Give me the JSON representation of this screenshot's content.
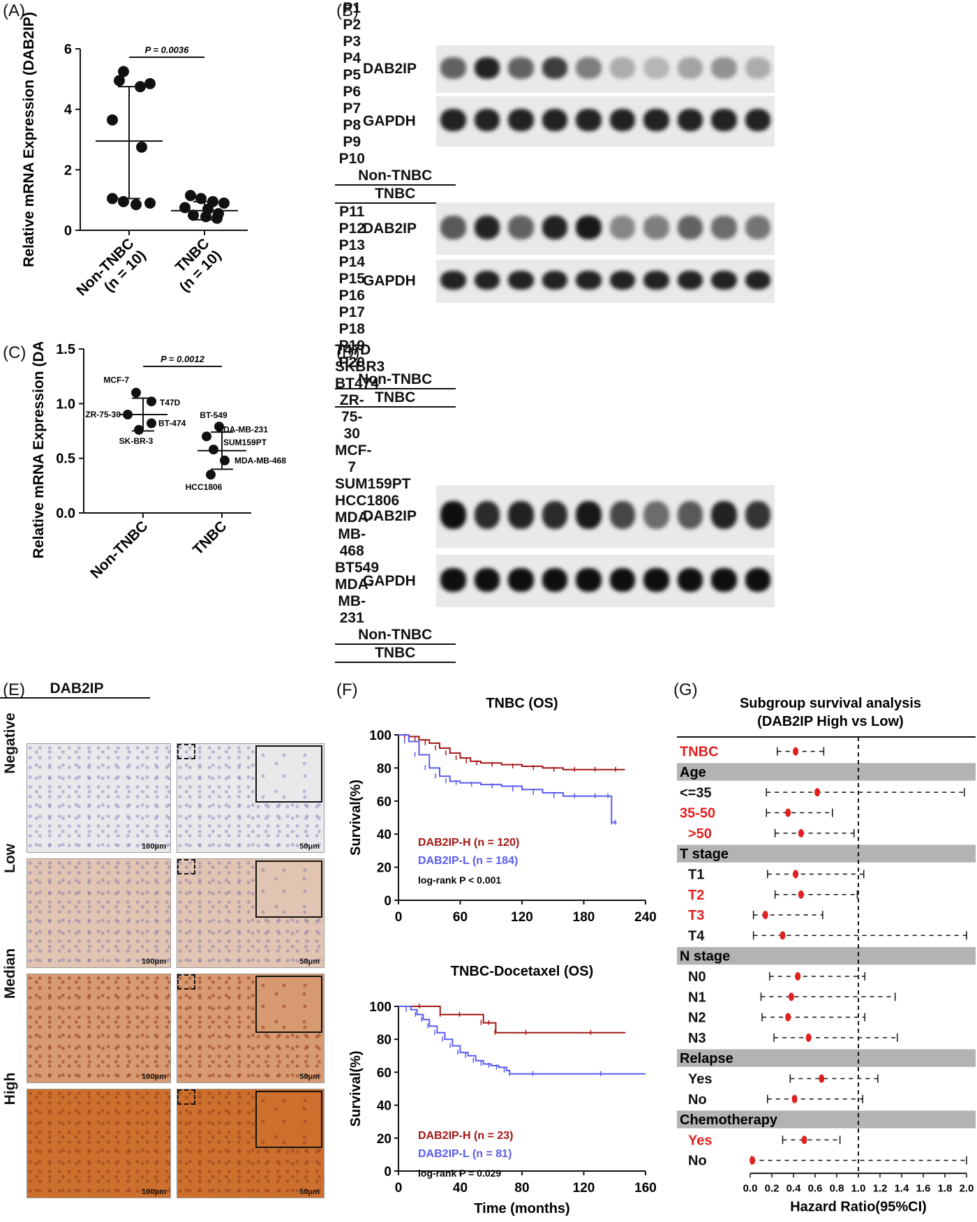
{
  "panel_labels": [
    "(A)",
    "(B)",
    "(C)",
    "(D)",
    "(E)",
    "(F)",
    "(G)"
  ],
  "colors": {
    "high": "#a31515",
    "low": "#5a5af0",
    "point_red": "#e02020",
    "sep": "#b3b3b3"
  },
  "chart_data": [
    {
      "id": "A",
      "type": "scatter",
      "ylabel": "Relative mRNA Expression (DAB2IP)",
      "categories": [
        "Non-TNBC\n(n = 10)",
        "TNBC\n(n = 10)"
      ],
      "yticks": [
        0,
        2,
        4,
        6
      ],
      "ylim": [
        0,
        6
      ],
      "pvalue": "P = 0.0036",
      "series": [
        {
          "points": [
            5.25,
            4.85,
            4.75,
            4.95,
            3.65,
            2.75,
            1.05,
            0.95,
            0.85,
            0.9
          ],
          "mean": 2.95,
          "sd_low": 1.05,
          "sd_high": 4.75
        },
        {
          "points": [
            1.15,
            1.05,
            0.95,
            0.9,
            0.75,
            0.7,
            0.55,
            0.5,
            0.45,
            0.4
          ],
          "mean": 0.65,
          "sd_low": 0.35,
          "sd_high": 0.95
        }
      ]
    },
    {
      "id": "C",
      "type": "scatter",
      "ylabel": "Relative mRNA Expression (DAB2IP)",
      "categories": [
        "Non-TNBC",
        "TNBC"
      ],
      "yticks": [
        "0.0",
        "0.5",
        "1.0",
        "1.5"
      ],
      "ylim": [
        0,
        1.5
      ],
      "pvalue": "P = 0.0012",
      "series": [
        {
          "points": [
            1.1,
            1.02,
            0.9,
            0.82,
            0.76
          ],
          "mean": 0.9,
          "sd_low": 0.75,
          "sd_high": 1.05,
          "labels": [
            "MCF-7",
            "T47D",
            "ZR-75-30",
            "BT-474",
            "SK-BR-3"
          ]
        },
        {
          "points": [
            0.79,
            0.7,
            0.58,
            0.48,
            0.35
          ],
          "mean": 0.57,
          "sd_low": 0.4,
          "sd_high": 0.74,
          "labels": [
            "BT-549",
            "MDA-MB-231",
            "SUM159PT",
            "MDA-MB-468",
            "HCC1806"
          ]
        }
      ]
    },
    {
      "id": "F1",
      "type": "line",
      "title": "TNBC (OS)",
      "ylabel": "Survival(%)",
      "xticks": [
        0,
        60,
        120,
        180,
        240
      ],
      "yticks": [
        0,
        20,
        40,
        60,
        80,
        100
      ],
      "xlim": [
        0,
        240
      ],
      "ylim": [
        0,
        100
      ],
      "series": [
        {
          "name": "DAB2IP-H (n = 120)",
          "x": [
            0,
            10,
            20,
            30,
            40,
            50,
            60,
            70,
            80,
            100,
            120,
            140,
            160,
            180,
            200,
            220
          ],
          "y": [
            100,
            99,
            97,
            95,
            92,
            89,
            86,
            84,
            83,
            82,
            81,
            80,
            79,
            79,
            79,
            79
          ]
        },
        {
          "name": "DAB2IP-L (n = 184)",
          "x": [
            0,
            10,
            20,
            30,
            40,
            50,
            60,
            80,
            100,
            120,
            140,
            160,
            180,
            200,
            205,
            207,
            212
          ],
          "y": [
            100,
            96,
            88,
            80,
            75,
            72,
            71,
            70,
            69,
            67,
            65,
            63,
            63,
            63,
            63,
            47,
            47
          ]
        }
      ],
      "annotation": "log-rank P < 0.001"
    },
    {
      "id": "F2",
      "type": "line",
      "title": "TNBC-Docetaxel (OS)",
      "ylabel": "Survival(%)",
      "xlabel": "Time (months)",
      "xticks": [
        0,
        40,
        80,
        120,
        160
      ],
      "yticks": [
        0,
        20,
        40,
        60,
        80,
        100
      ],
      "xlim": [
        0,
        160
      ],
      "ylim": [
        0,
        100
      ],
      "series": [
        {
          "name": "DAB2IP-H (n = 23)",
          "x": [
            0,
            25,
            27,
            50,
            55,
            60,
            63,
            100,
            147
          ],
          "y": [
            100,
            100,
            95,
            95,
            90,
            90,
            84,
            84,
            84
          ]
        },
        {
          "name": "DAB2IP-L (n = 81)",
          "x": [
            0,
            8,
            12,
            16,
            20,
            25,
            30,
            35,
            40,
            45,
            50,
            55,
            60,
            65,
            70,
            72,
            100,
            160
          ],
          "y": [
            100,
            98,
            95,
            92,
            88,
            84,
            80,
            76,
            72,
            70,
            67,
            65,
            64,
            63,
            61,
            59,
            59,
            59
          ]
        }
      ],
      "annotation": "log-rank P = 0.029"
    },
    {
      "id": "G",
      "type": "forest",
      "title": "Subgroup survival analysis",
      "subtitle": "(DAB2IP High vs Low)",
      "xlabel": "Hazard Ratio(95%CI)",
      "xticks": [
        "0.0",
        "0.2",
        "0.4",
        "0.6",
        "0.8",
        "1.0",
        "1.2",
        "1.4",
        "1.6",
        "1.8",
        "2.0"
      ],
      "xlim": [
        0,
        2
      ],
      "rows": [
        {
          "label": "TNBC",
          "red": true,
          "hr": 0.42,
          "lo": 0.25,
          "hi": 0.68
        },
        {
          "label": "Age",
          "header": true
        },
        {
          "label": "<=35",
          "red": false,
          "hr": 0.62,
          "lo": 0.15,
          "hi": 1.98
        },
        {
          "label": "35-50",
          "red": true,
          "hr": 0.35,
          "lo": 0.15,
          "hi": 0.76
        },
        {
          "label": ">50",
          "red": true,
          "hr": 0.47,
          "lo": 0.23,
          "hi": 0.96
        },
        {
          "label": "T stage",
          "header": true
        },
        {
          "label": "T1",
          "red": false,
          "hr": 0.42,
          "lo": 0.16,
          "hi": 1.05
        },
        {
          "label": "T2",
          "red": true,
          "hr": 0.47,
          "lo": 0.23,
          "hi": 0.99
        },
        {
          "label": "T3",
          "red": true,
          "hr": 0.14,
          "lo": 0.03,
          "hi": 0.67
        },
        {
          "label": "T4",
          "red": false,
          "hr": 0.3,
          "lo": 0.03,
          "hi": 2.0
        },
        {
          "label": "N stage",
          "header": true
        },
        {
          "label": "N0",
          "red": false,
          "hr": 0.44,
          "lo": 0.18,
          "hi": 1.06
        },
        {
          "label": "N1",
          "red": false,
          "hr": 0.38,
          "lo": 0.1,
          "hi": 1.34
        },
        {
          "label": "N2",
          "red": false,
          "hr": 0.35,
          "lo": 0.11,
          "hi": 1.06
        },
        {
          "label": "N3",
          "red": false,
          "hr": 0.54,
          "lo": 0.22,
          "hi": 1.36
        },
        {
          "label": "Relapse",
          "header": true
        },
        {
          "label": "Yes",
          "red": false,
          "hr": 0.66,
          "lo": 0.37,
          "hi": 1.18
        },
        {
          "label": "No",
          "red": false,
          "hr": 0.41,
          "lo": 0.16,
          "hi": 1.04
        },
        {
          "label": "Chemotherapy",
          "header": true
        },
        {
          "label": "Yes",
          "red": true,
          "hr": 0.5,
          "lo": 0.3,
          "hi": 0.83
        },
        {
          "label": "No",
          "red": false,
          "hr": 0.02,
          "lo": 0.01,
          "hi": 2.0
        }
      ]
    }
  ],
  "blots": {
    "group_non_tnbc": "Non-TNBC",
    "group_tnbc": "TNBC",
    "protein_1": "DAB2IP",
    "protein_2": "GAPDH",
    "b_top_lanes": [
      "P1",
      "P2",
      "P3",
      "P4",
      "P5",
      "P6",
      "P7",
      "P8",
      "P9",
      "P10"
    ],
    "b_bottom_lanes": [
      "P11",
      "P12",
      "P13",
      "P14",
      "P15",
      "P16",
      "P17",
      "P18",
      "P19",
      "P20"
    ],
    "b_top_dab2ip": [
      0.55,
      0.9,
      0.55,
      0.75,
      0.4,
      0.15,
      0.1,
      0.2,
      0.3,
      0.15
    ],
    "b_bottom_dab2ip": [
      0.6,
      0.9,
      0.55,
      0.9,
      0.95,
      0.35,
      0.4,
      0.55,
      0.5,
      0.45
    ],
    "d_lanes": [
      "T47D",
      "SKBR3",
      "BT474",
      "ZR-75-30",
      "MCF-7",
      "SUM159PT",
      "HCC1806",
      "MDA-MB-468",
      "BT549",
      "MDA-MB-231"
    ],
    "d_dab2ip": [
      1.0,
      0.85,
      0.9,
      0.85,
      0.95,
      0.7,
      0.5,
      0.6,
      0.9,
      0.8
    ]
  },
  "ihc": {
    "title": "DAB2IP",
    "rows": [
      "Negative",
      "Low",
      "Median",
      "High"
    ],
    "scale_left": "100μm",
    "scale_right": "50μm",
    "stain": [
      0.0,
      0.3,
      0.65,
      1.0
    ]
  }
}
